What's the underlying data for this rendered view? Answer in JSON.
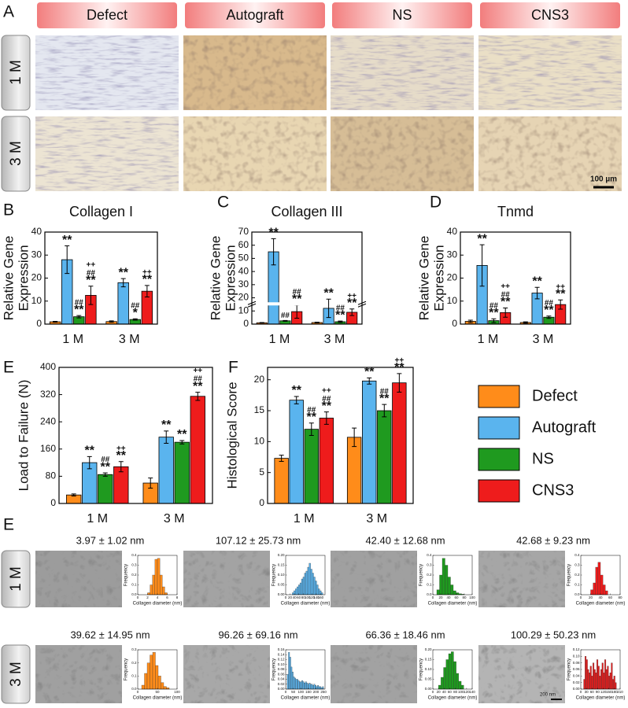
{
  "panel_labels": [
    "A",
    "B",
    "C",
    "D",
    "E",
    "F",
    "E"
  ],
  "histology": {
    "column_headers": [
      "Defect",
      "Autograft",
      "NS",
      "CNS3"
    ],
    "row_labels": [
      "1 M",
      "3 M"
    ],
    "scale_bar": "100 µm"
  },
  "legend": [
    {
      "name": "Defect",
      "color": "#ff8c1a"
    },
    {
      "name": "Autograft",
      "color": "#5ab4ee"
    },
    {
      "name": "NS",
      "color": "#1f9a1f"
    },
    {
      "name": "CNS3",
      "color": "#ee1c1c"
    }
  ],
  "tem": {
    "row_labels": [
      "1 M",
      "3 M"
    ],
    "titles": [
      [
        "3.97 ± 1.02 nm",
        "107.12 ± 25.73 nm",
        "42.40 ± 12.68 nm",
        "42.68 ± 9.23 nm"
      ],
      [
        "39.62 ± 14.95 nm",
        "96.26 ± 69.16 nm",
        "66.36 ± 18.46 nm",
        "100.29 ± 50.23 nm"
      ]
    ],
    "scale_bar": "200 nm"
  },
  "chart_data": [
    {
      "type": "bar",
      "title": "Collagen I",
      "ylabel": [
        "Relative Gene",
        "Expression"
      ],
      "categories": [
        "1 M",
        "3 M"
      ],
      "ylim": [
        0,
        40
      ],
      "yticks": [
        0,
        10,
        20,
        30,
        40
      ],
      "series": [
        {
          "color": "#ff8c1a",
          "values": [
            1,
            1.1
          ],
          "errors": [
            0.2,
            0.3
          ],
          "annotations": [
            [],
            []
          ]
        },
        {
          "color": "#5ab4ee",
          "values": [
            28,
            18
          ],
          "errors": [
            6,
            1.8
          ],
          "annotations": [
            [
              "**"
            ],
            [
              "**"
            ]
          ]
        },
        {
          "color": "#1f9a1f",
          "values": [
            3.2,
            2
          ],
          "errors": [
            0.5,
            0.3
          ],
          "annotations": [
            [
              "##",
              "**"
            ],
            [
              "##",
              "*"
            ]
          ]
        },
        {
          "color": "#ee1c1c",
          "values": [
            12.5,
            14.3
          ],
          "errors": [
            4,
            2.5
          ],
          "annotations": [
            [
              "++",
              "##",
              "**"
            ],
            [
              "++",
              "**"
            ]
          ]
        }
      ]
    },
    {
      "type": "bar",
      "title": "Collagen III",
      "ylabel": [
        "Relative Gene",
        "Expression"
      ],
      "categories": [
        "1 M",
        "3 M"
      ],
      "ylim": [
        0,
        70
      ],
      "yticks": [
        0,
        10,
        20,
        30,
        40,
        50,
        60,
        70
      ],
      "axis_break": true,
      "series": [
        {
          "color": "#ff8c1a",
          "values": [
            1,
            1.2
          ],
          "errors": [
            0.2,
            0.3
          ],
          "annotations": [
            [],
            []
          ]
        },
        {
          "color": "#5ab4ee",
          "values": [
            55,
            12
          ],
          "errors": [
            10,
            7
          ],
          "annotations": [
            [
              "**"
            ],
            [
              "**"
            ]
          ]
        },
        {
          "color": "#1f9a1f",
          "values": [
            2.5,
            1.8
          ],
          "errors": [
            0.3,
            0.5
          ],
          "annotations": [
            [
              "##"
            ],
            [
              "##",
              "**"
            ]
          ]
        },
        {
          "color": "#ee1c1c",
          "values": [
            9.5,
            9
          ],
          "errors": [
            5,
            2.5
          ],
          "annotations": [
            [
              "##",
              "**"
            ],
            [
              "++",
              "**"
            ]
          ]
        }
      ]
    },
    {
      "type": "bar",
      "title": "Tnmd",
      "ylabel": [
        "Relative Gene",
        "Expression"
      ],
      "categories": [
        "1 M",
        "3 M"
      ],
      "ylim": [
        0,
        40
      ],
      "yticks": [
        0,
        10,
        20,
        30,
        40
      ],
      "series": [
        {
          "color": "#ff8c1a",
          "values": [
            1.2,
            0.7
          ],
          "errors": [
            0.5,
            0.3
          ],
          "annotations": [
            [],
            []
          ]
        },
        {
          "color": "#5ab4ee",
          "values": [
            25.5,
            13.5
          ],
          "errors": [
            9,
            2.5
          ],
          "annotations": [
            [
              "**"
            ],
            [
              "**"
            ]
          ]
        },
        {
          "color": "#1f9a1f",
          "values": [
            1.5,
            3
          ],
          "errors": [
            0.8,
            0.5
          ],
          "annotations": [
            [
              "##",
              "**"
            ],
            [
              "##",
              "**"
            ]
          ]
        },
        {
          "color": "#ee1c1c",
          "values": [
            5,
            8.5
          ],
          "errors": [
            2,
            2
          ],
          "annotations": [
            [
              "++",
              "##",
              "**"
            ],
            [
              "++",
              "**"
            ]
          ]
        }
      ]
    },
    {
      "type": "bar",
      "ylabel": "Load to Failure (N)",
      "categories": [
        "1 M",
        "3 M"
      ],
      "ylim": [
        0,
        400
      ],
      "yticks": [
        0,
        80,
        160,
        240,
        320,
        400
      ],
      "series": [
        {
          "color": "#ff8c1a",
          "values": [
            25,
            60
          ],
          "errors": [
            3,
            15
          ],
          "annotations": [
            [],
            []
          ]
        },
        {
          "color": "#5ab4ee",
          "values": [
            120,
            195
          ],
          "errors": [
            18,
            18
          ],
          "annotations": [
            [
              "**"
            ],
            [
              "**"
            ]
          ]
        },
        {
          "color": "#1f9a1f",
          "values": [
            85,
            180
          ],
          "errors": [
            5,
            5
          ],
          "annotations": [
            [
              "##",
              "**"
            ],
            [
              "**"
            ]
          ]
        },
        {
          "color": "#ee1c1c",
          "values": [
            108,
            315
          ],
          "errors": [
            15,
            12
          ],
          "annotations": [
            [
              "++",
              "**"
            ],
            [
              "++",
              "##",
              "**"
            ]
          ]
        }
      ]
    },
    {
      "type": "bar",
      "ylabel": "Histological Score",
      "categories": [
        "1 M",
        "3 M"
      ],
      "ylim": [
        0,
        22
      ],
      "yticks": [
        0,
        5,
        10,
        15,
        20
      ],
      "series": [
        {
          "color": "#ff8c1a",
          "values": [
            7.3,
            10.7
          ],
          "errors": [
            0.5,
            1.5
          ],
          "annotations": [
            [],
            []
          ]
        },
        {
          "color": "#5ab4ee",
          "values": [
            16.7,
            19.8
          ],
          "errors": [
            0.6,
            0.5
          ],
          "annotations": [
            [
              "**"
            ],
            [
              "**"
            ]
          ]
        },
        {
          "color": "#1f9a1f",
          "values": [
            12,
            15
          ],
          "errors": [
            1,
            1
          ],
          "annotations": [
            [
              "##",
              "**"
            ],
            [
              "##",
              "**"
            ]
          ]
        },
        {
          "color": "#ee1c1c",
          "values": [
            13.8,
            19.5
          ],
          "errors": [
            1,
            1.5
          ],
          "annotations": [
            [
              "++",
              "##",
              "**"
            ],
            [
              "++",
              "**"
            ]
          ]
        }
      ]
    },
    {
      "type": "histogram",
      "color": "#ff8c1a",
      "xlabel": "Collagen diameter (nm)",
      "ylabel": "Frequency",
      "xlim": [
        0,
        8
      ],
      "xticks": [
        0,
        2,
        4,
        6,
        8
      ],
      "ylim": [
        0,
        0.4
      ],
      "yticks": [
        {
          "value": 0,
          "label": "0.0"
        },
        0.1,
        0.2,
        0.3,
        0.4
      ],
      "bins": [
        2,
        2.5,
        3,
        3.5,
        4,
        4.5,
        5,
        5.5,
        6
      ],
      "values": [
        0.02,
        0.1,
        0.2,
        0.36,
        0.37,
        0.2,
        0.08,
        0.02
      ]
    },
    {
      "type": "histogram",
      "color": "#5ab4ee",
      "xlabel": "Collagen diameter (nm)",
      "ylabel": "Frequency",
      "xlim": [
        0,
        180
      ],
      "xticks": [
        0,
        20,
        40,
        60,
        80,
        100,
        120,
        140,
        160
      ],
      "ylim": [
        0,
        0.2
      ],
      "yticks": [
        {
          "value": 0,
          "label": "0.00"
        },
        0.05,
        {
          "value": 0.1,
          "label": "0.10"
        },
        0.15,
        {
          "value": 0.2,
          "label": "0.20"
        }
      ],
      "bins": [
        30,
        37,
        44,
        51,
        58,
        65,
        72,
        79,
        86,
        93,
        100,
        107,
        114,
        121,
        128,
        135,
        142,
        149,
        156,
        163,
        170
      ],
      "values": [
        0.01,
        0.02,
        0.03,
        0.04,
        0.05,
        0.06,
        0.08,
        0.09,
        0.11,
        0.12,
        0.14,
        0.16,
        0.13,
        0.11,
        0.09,
        0.07,
        0.05,
        0.03,
        0.02,
        0.01
      ]
    },
    {
      "type": "histogram",
      "color": "#1f9a1f",
      "xlabel": "Collagen diameter (nm)",
      "ylabel": "Frequency",
      "xlim": [
        0,
        100
      ],
      "xticks": [
        0,
        20,
        40,
        60,
        80,
        100
      ],
      "ylim": [
        0,
        0.4
      ],
      "yticks": [
        {
          "value": 0,
          "label": "0.0"
        },
        0.1,
        0.2,
        0.3,
        0.4
      ],
      "bins": [
        10,
        17,
        24,
        31,
        38,
        45,
        52,
        59,
        66,
        73,
        80
      ],
      "values": [
        0.05,
        0.2,
        0.37,
        0.3,
        0.18,
        0.1,
        0.04,
        0.02,
        0.01,
        0.005
      ]
    },
    {
      "type": "histogram",
      "color": "#ee1c1c",
      "xlabel": "Collagen diameter (nm)",
      "ylabel": "Frequency",
      "xlim": [
        0,
        80
      ],
      "xticks": [
        0,
        20,
        40,
        60,
        80
      ],
      "ylim": [
        0,
        0.4
      ],
      "yticks": [
        {
          "value": 0,
          "label": "0.0"
        },
        0.1,
        0.2,
        0.3,
        0.4
      ],
      "bins": [
        20,
        25,
        30,
        35,
        40,
        45,
        50,
        55
      ],
      "values": [
        0.05,
        0.12,
        0.28,
        0.33,
        0.2,
        0.1,
        0.04
      ]
    },
    {
      "type": "histogram",
      "color": "#ff8c1a",
      "xlabel": "Collagen diameter (nm)",
      "ylabel": "Frequency",
      "xlim": [
        0,
        100
      ],
      "xticks": [
        0,
        50,
        100
      ],
      "ylim": [
        0,
        0.3
      ],
      "yticks": [
        {
          "value": 0,
          "label": "0.0"
        },
        0.1,
        0.2,
        0.3
      ],
      "bins": [
        10,
        17,
        24,
        31,
        38,
        45,
        52,
        59,
        66,
        73,
        80
      ],
      "values": [
        0.03,
        0.12,
        0.2,
        0.26,
        0.28,
        0.18,
        0.1,
        0.05,
        0.02,
        0.01
      ]
    },
    {
      "type": "histogram",
      "color": "#5ab4ee",
      "xlabel": "Collagen diameter (nm)",
      "ylabel": "Frequency",
      "xlim": [
        0,
        260
      ],
      "xticks": [
        0,
        50,
        100,
        150,
        200,
        250
      ],
      "ylim": [
        0,
        0.16
      ],
      "yticks": [
        {
          "value": 0,
          "label": "0.00"
        },
        0.02,
        0.04,
        0.06,
        0.08,
        {
          "value": 0.1,
          "label": "0.10"
        },
        0.12,
        0.14,
        0.16
      ],
      "bins": [
        10,
        18,
        26,
        34,
        42,
        50,
        58,
        66,
        74,
        82,
        90,
        98,
        106,
        114,
        122,
        130,
        138,
        146,
        154,
        162,
        170,
        178,
        186,
        194,
        202,
        210,
        218,
        226,
        234,
        242,
        250
      ],
      "values": [
        0.06,
        0.15,
        0.13,
        0.09,
        0.07,
        0.05,
        0.045,
        0.04,
        0.04,
        0.035,
        0.03,
        0.03,
        0.035,
        0.03,
        0.025,
        0.03,
        0.025,
        0.02,
        0.025,
        0.02,
        0.02,
        0.015,
        0.02,
        0.015,
        0.01,
        0.015,
        0.01,
        0.01,
        0.005,
        0.01
      ]
    },
    {
      "type": "histogram",
      "color": "#1f9a1f",
      "xlabel": "Collagen diameter (nm)",
      "ylabel": "Frequency",
      "xlim": [
        0,
        140
      ],
      "xticks": [
        0,
        20,
        40,
        60,
        80,
        100,
        120,
        140
      ],
      "ylim": [
        0,
        0.2
      ],
      "yticks": [
        {
          "value": 0,
          "label": "0.00"
        },
        0.05,
        {
          "value": 0.1,
          "label": "0.10"
        },
        0.15,
        {
          "value": 0.2,
          "label": "0.20"
        }
      ],
      "bins": [
        20,
        29,
        38,
        47,
        56,
        65,
        74,
        83,
        92,
        101,
        110
      ],
      "values": [
        0.02,
        0.06,
        0.11,
        0.15,
        0.18,
        0.19,
        0.14,
        0.08,
        0.04,
        0.02
      ]
    },
    {
      "type": "histogram",
      "color": "#ee1c1c",
      "xlabel": "Collagen diameter (nm)",
      "ylabel": "Frequency",
      "xlim": [
        0,
        210
      ],
      "xticks": [
        0,
        30,
        60,
        90,
        120,
        150,
        180,
        210
      ],
      "ylim": [
        0,
        0.12
      ],
      "yticks": [
        {
          "value": 0,
          "label": "0.00"
        },
        0.02,
        0.04,
        0.06,
        0.08,
        {
          "value": 0.1,
          "label": "0.10"
        },
        0.12
      ],
      "bins": [
        15,
        22,
        29,
        36,
        43,
        50,
        57,
        64,
        71,
        78,
        85,
        92,
        99,
        106,
        113,
        120,
        127,
        134,
        141,
        148,
        155,
        162,
        169,
        176,
        183,
        190
      ],
      "values": [
        0.03,
        0.1,
        0.09,
        0.06,
        0.05,
        0.07,
        0.04,
        0.08,
        0.06,
        0.05,
        0.09,
        0.07,
        0.04,
        0.06,
        0.08,
        0.05,
        0.09,
        0.06,
        0.07,
        0.04,
        0.05,
        0.08,
        0.03,
        0.04,
        0.02
      ]
    }
  ]
}
